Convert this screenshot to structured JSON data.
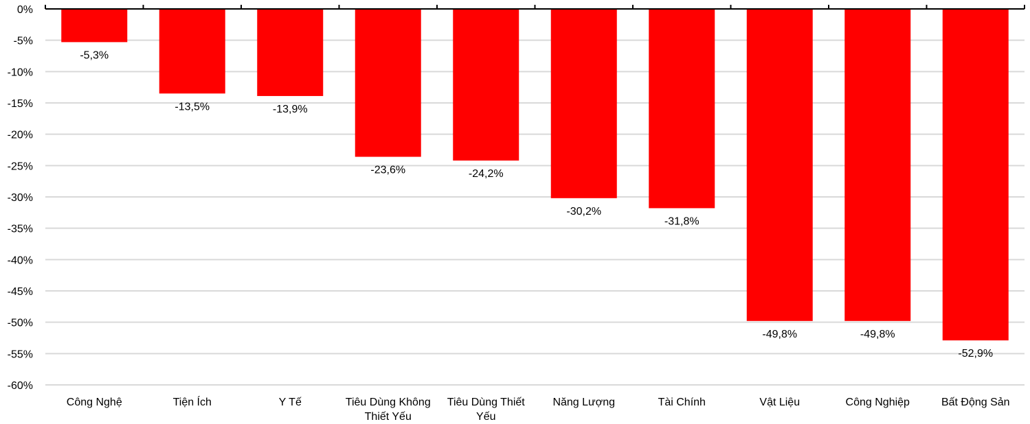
{
  "chart_data": {
    "type": "bar",
    "title": "",
    "xlabel": "",
    "ylabel": "",
    "ylim": [
      -60,
      0
    ],
    "yticks": [
      0,
      -5,
      -10,
      -15,
      -20,
      -25,
      -30,
      -35,
      -40,
      -45,
      -50,
      -55,
      -60
    ],
    "ytick_labels": [
      "0%",
      "-5%",
      "-10%",
      "-15%",
      "-20%",
      "-25%",
      "-30%",
      "-35%",
      "-40%",
      "-45%",
      "-50%",
      "-55%",
      "-60%"
    ],
    "categories": [
      [
        "Công Nghệ"
      ],
      [
        "Tiện Ích"
      ],
      [
        "Y Tế"
      ],
      [
        "Tiêu Dùng Không",
        "Thiết Yếu"
      ],
      [
        "Tiêu Dùng Thiết",
        "Yếu"
      ],
      [
        "Năng Lượng"
      ],
      [
        "Tài Chính"
      ],
      [
        "Vật Liệu"
      ],
      [
        "Công Nghiệp"
      ],
      [
        "Bất Động Sản"
      ]
    ],
    "values": [
      -5.3,
      -13.5,
      -13.9,
      -23.6,
      -24.2,
      -30.2,
      -31.8,
      -49.8,
      -49.8,
      -52.9
    ],
    "data_labels": [
      "-5,3%",
      "-13,5%",
      "-13,9%",
      "-23,6%",
      "-24,2%",
      "-30,2%",
      "-31,8%",
      "-49,8%",
      "-49,8%",
      "-52,9%"
    ],
    "bar_color": "#ff0000",
    "grid": true,
    "legend": "none"
  }
}
